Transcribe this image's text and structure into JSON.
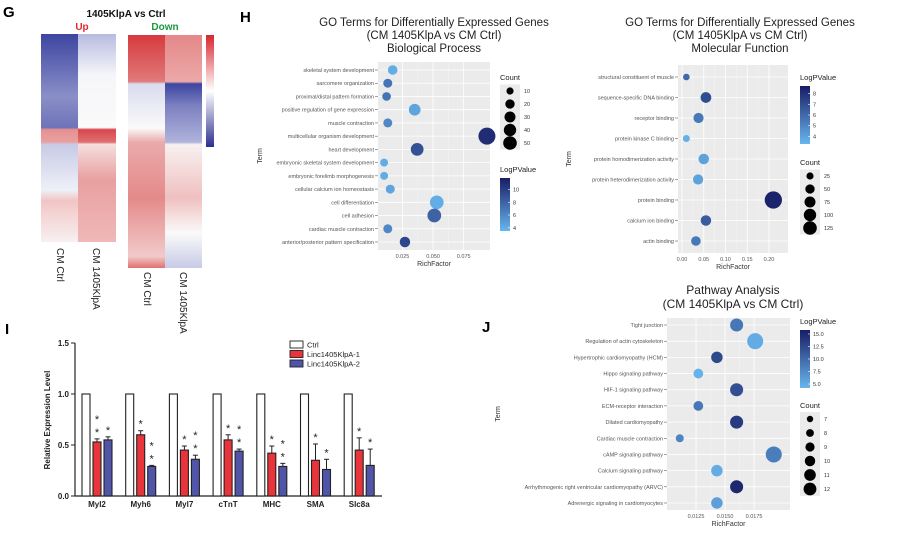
{
  "panel_labels": {
    "g": "G",
    "h": "H",
    "i": "I",
    "j": "J"
  },
  "heatmap": {
    "title": "1405KlpA vs Ctrl",
    "up_label": "Up",
    "down_label": "Down",
    "up_columns": [
      "CM Ctrl",
      "CM 1405KlpA"
    ],
    "down_columns": [
      "CM Ctrl",
      "CM 1405KlpA"
    ],
    "colors": {
      "high": "#d7262b",
      "mid": "#ffffff",
      "low": "#2b2f8f",
      "up_label": "#e8262b",
      "down_label": "#1a9a3c"
    }
  },
  "colors": {
    "bubble_low": "#68b6ee",
    "bubble_high": "#181d66",
    "panel_bg": "#ebebeb",
    "ctrl": "#ffffff",
    "linc1": "#e8343a",
    "linc2": "#5055a8"
  },
  "chart_data": [
    {
      "id": "bp",
      "type": "scatter",
      "title": [
        "GO Terms for Differentially Expressed Genes",
        "(CM 1405KlpA vs CM Ctrl)",
        "Biological Process"
      ],
      "xlabel": "RichFactor",
      "ylabel": "Term",
      "xticks": [
        0.025,
        0.05,
        0.075
      ],
      "xtick_labels": [
        "0.025",
        "0.050",
        "0.075"
      ],
      "xlim": [
        0.005,
        0.0965
      ],
      "terms": [
        "skeletal system development",
        "sarcomere organization",
        "proximal/distal pattern formation",
        "positive regulation of gene expression",
        "muscle contraction",
        "multicellular organism development",
        "heart development",
        "embryonic skeletal system development",
        "embryonic forelimb morphogenesis",
        "cellular calcium ion homeostasis",
        "cell differentiation",
        "cell adhesion",
        "cardiac muscle contraction",
        "anterior/posterior pattern specification"
      ],
      "x": [
        0.017,
        0.013,
        0.012,
        0.035,
        0.013,
        0.094,
        0.037,
        0.01,
        0.01,
        0.015,
        0.053,
        0.051,
        0.013,
        0.027
      ],
      "logp": [
        4,
        7,
        7,
        4.5,
        6,
        11,
        9,
        4,
        4,
        4.5,
        4,
        8,
        6,
        9.5
      ],
      "count": [
        12,
        10,
        9,
        20,
        10,
        50,
        25,
        7,
        7,
        10,
        30,
        30,
        10,
        15
      ],
      "count_legend": {
        "title": "Count",
        "values": [
          10,
          20,
          30,
          40,
          50
        ]
      },
      "logp_legend": {
        "title": "LogPValue",
        "range": [
          3.5,
          11.8
        ],
        "ticks": [
          4,
          6,
          8,
          10
        ],
        "tick_labels": [
          "4",
          "6",
          "8",
          "10"
        ]
      }
    },
    {
      "id": "mf",
      "type": "scatter",
      "title": [
        "GO Terms for Differentially Expressed Genes",
        "(CM 1405KlpA vs CM Ctrl)",
        "Molecular Function"
      ],
      "xlabel": "RichFactor",
      "ylabel": "Term",
      "xticks": [
        0,
        0.05,
        0.1,
        0.15,
        0.2
      ],
      "xtick_labels": [
        "0.00",
        "0.05",
        "0.10",
        "0.15",
        "0.20"
      ],
      "xlim": [
        -0.0092,
        0.2437
      ],
      "terms": [
        "structural constituent of muscle",
        "sequence-specific DNA binding",
        "receptor binding",
        "protein kinase C binding",
        "protein homodimerization activity",
        "protein heterodimerization activity",
        "protein binding",
        "calcium ion binding",
        "actin binding"
      ],
      "x": [
        0.01,
        0.055,
        0.038,
        0.01,
        0.05,
        0.037,
        0.21,
        0.055,
        0.032
      ],
      "logp": [
        6,
        7,
        5.5,
        3.5,
        4,
        4,
        8.5,
        6.5,
        5.5
      ],
      "count": [
        10,
        40,
        35,
        12,
        38,
        35,
        130,
        38,
        30
      ],
      "count_legend": {
        "title": "Count",
        "values": [
          25,
          50,
          75,
          100,
          125
        ]
      },
      "logp_legend": {
        "title": "LogPValue",
        "range": [
          3.3,
          8.7
        ],
        "ticks": [
          4,
          5,
          6,
          7,
          8
        ],
        "tick_labels": [
          "4",
          "5",
          "6",
          "7",
          "8"
        ]
      }
    },
    {
      "id": "pathway",
      "type": "scatter",
      "title": [
        "Pathway Analysis",
        "(CM 1405KlpA vs CM Ctrl)"
      ],
      "xlabel": "RichFactor",
      "ylabel": "Term",
      "xticks": [
        0.0125,
        0.015,
        0.0175
      ],
      "xtick_labels": [
        "0.0125",
        "0.0150",
        "0.0175"
      ],
      "xlim": [
        0.01,
        0.0206
      ],
      "terms": [
        "Tight junction",
        "Regulation of actin cytoskeleton",
        "Hypertrophic cardiomyopathy (HCM)",
        "Hippo signaling pathway",
        "HIF-1 signaling pathway",
        "ECM-receptor interaction",
        "Dilated cardiomyopathy",
        "Cardiac muscle contraction",
        "cAMP signaling pathway",
        "Calcium signaling pathway",
        "Arrhythmogenic right ventricular cardiomyopathy (ARVC)",
        "Adrenergic signaling in cardiomyocytes"
      ],
      "x": [
        0.016,
        0.0176,
        0.0143,
        0.0127,
        0.016,
        0.0127,
        0.016,
        0.0111,
        0.0192,
        0.0143,
        0.016,
        0.0143
      ],
      "logp": [
        9,
        5,
        12.5,
        4.5,
        12,
        9,
        13.5,
        8,
        8.5,
        5,
        15,
        6
      ],
      "count": [
        10,
        12,
        9,
        8,
        10,
        8,
        10,
        7,
        12,
        9,
        10,
        9
      ],
      "count_legend": {
        "title": "Count",
        "values": [
          7,
          8,
          9,
          10,
          11,
          12
        ]
      },
      "logp_legend": {
        "title": "LogPValue",
        "range": [
          4.2,
          15.8
        ],
        "ticks": [
          5,
          7.5,
          10,
          12.5,
          15
        ],
        "tick_labels": [
          "5.0",
          "7.5",
          "10.0",
          "12.5",
          "15.0"
        ]
      }
    },
    {
      "id": "qpcr",
      "type": "bar",
      "ylabel": "Relative Expression Level",
      "ylim": [
        0,
        1.5
      ],
      "yticks": [
        0,
        0.5,
        1.0,
        1.5
      ],
      "ytick_labels": [
        "0.0",
        "0.5",
        "1.0",
        "1.5"
      ],
      "categories": [
        "Myl2",
        "Myh6",
        "Myl7",
        "cTnT",
        "MHC",
        "SMA",
        "Slc8a"
      ],
      "series": [
        {
          "name": "Ctrl",
          "values": [
            1,
            1,
            1,
            1,
            1,
            1,
            1
          ],
          "errors": [
            0,
            0,
            0,
            0,
            0,
            0,
            0
          ],
          "stars": [
            "",
            "",
            "",
            "",
            "",
            "",
            ""
          ]
        },
        {
          "name": "Linc1405KlpA-1",
          "values": [
            0.53,
            0.6,
            0.45,
            0.55,
            0.42,
            0.35,
            0.45
          ],
          "errors": [
            0.03,
            0.04,
            0.04,
            0.05,
            0.07,
            0.16,
            0.12
          ],
          "stars": [
            "**",
            "*",
            "*",
            "*",
            "*",
            "*",
            "*"
          ]
        },
        {
          "name": "Linc1405KlpA-2",
          "values": [
            0.55,
            0.29,
            0.36,
            0.44,
            0.29,
            0.26,
            0.3
          ],
          "errors": [
            0.03,
            0.01,
            0.04,
            0.02,
            0.03,
            0.1,
            0.16
          ],
          "stars": [
            "*",
            "**",
            "**",
            "**",
            "**",
            "*",
            "*"
          ]
        }
      ],
      "legend": "top-right"
    }
  ]
}
